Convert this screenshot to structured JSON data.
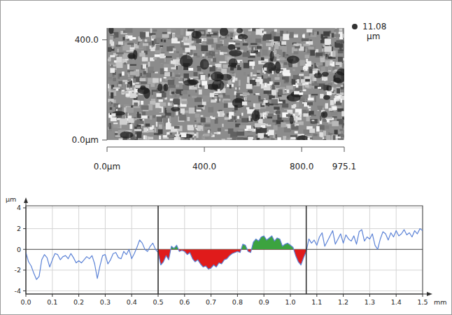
{
  "chart_data": [
    {
      "type": "surface",
      "xlim": [
        0,
        975.1
      ],
      "ylim": [
        0,
        447
      ],
      "xticks": [
        {
          "value": 0,
          "label": "0.0µm"
        },
        {
          "value": 400,
          "label": "400.0"
        },
        {
          "value": 800,
          "label": "800.0"
        },
        {
          "value": 975.1,
          "label": "975.1"
        }
      ],
      "yticks": [
        {
          "value": 0,
          "label": "0.0µm"
        },
        {
          "value": 400,
          "label": "400.0"
        }
      ],
      "z_max": 11.08,
      "z_unit": "µm"
    },
    {
      "type": "line",
      "x_label": "mm",
      "y_label": "µm",
      "color": "#5b82d6",
      "grid": true,
      "xlim": [
        0,
        1.5
      ],
      "ylim": [
        -4.3,
        4.2
      ],
      "xticks": [
        {
          "value": 0,
          "label": "0.0"
        },
        0.1,
        0.2,
        0.3,
        0.4,
        0.5,
        0.6,
        0.7,
        0.8,
        0.9,
        {
          "value": 1,
          "label": "1.0"
        },
        1.1,
        1.2,
        1.3,
        1.4,
        1.5
      ],
      "yticks": [
        -4,
        -2,
        0,
        2,
        4
      ],
      "cursors": [
        0.5,
        1.06
      ],
      "x": [
        0,
        0.01,
        0.02,
        0.03,
        0.04,
        0.05,
        0.06,
        0.07,
        0.08,
        0.09,
        0.1,
        0.11,
        0.12,
        0.13,
        0.14,
        0.15,
        0.16,
        0.17,
        0.18,
        0.19,
        0.2,
        0.21,
        0.22,
        0.23,
        0.24,
        0.25,
        0.26,
        0.27,
        0.28,
        0.29,
        0.3,
        0.31,
        0.32,
        0.33,
        0.34,
        0.35,
        0.36,
        0.37,
        0.38,
        0.39,
        0.4,
        0.41,
        0.42,
        0.43,
        0.44,
        0.45,
        0.46,
        0.47,
        0.48,
        0.49,
        0.5,
        0.51,
        0.52,
        0.53,
        0.54,
        0.55,
        0.56,
        0.57,
        0.58,
        0.59,
        0.6,
        0.61,
        0.62,
        0.63,
        0.64,
        0.65,
        0.66,
        0.67,
        0.68,
        0.69,
        0.7,
        0.71,
        0.72,
        0.73,
        0.74,
        0.75,
        0.76,
        0.77,
        0.78,
        0.79,
        0.8,
        0.81,
        0.82,
        0.83,
        0.84,
        0.85,
        0.86,
        0.87,
        0.88,
        0.89,
        0.9,
        0.91,
        0.92,
        0.93,
        0.94,
        0.95,
        0.96,
        0.97,
        0.98,
        0.99,
        1,
        1.01,
        1.02,
        1.03,
        1.04,
        1.05,
        1.06,
        1.07,
        1.08,
        1.09,
        1.1,
        1.11,
        1.12,
        1.13,
        1.14,
        1.15,
        1.16,
        1.17,
        1.18,
        1.19,
        1.2,
        1.21,
        1.22,
        1.23,
        1.24,
        1.25,
        1.26,
        1.27,
        1.28,
        1.29,
        1.3,
        1.31,
        1.32,
        1.33,
        1.34,
        1.35,
        1.36,
        1.37,
        1.38,
        1.39,
        1.4,
        1.41,
        1.42,
        1.43,
        1.44,
        1.45,
        1.46,
        1.47,
        1.48,
        1.49,
        1.5
      ],
      "values": [
        -0.3,
        -1.2,
        -1.6,
        -2.3,
        -2.9,
        -2.6,
        -1.0,
        -0.5,
        -0.8,
        -1.7,
        -1.0,
        -0.4,
        -0.5,
        -1.0,
        -0.7,
        -0.6,
        -0.9,
        -0.4,
        -0.8,
        -1.3,
        -1.1,
        -1.3,
        -1.0,
        -0.7,
        -0.9,
        -0.6,
        -1.4,
        -2.8,
        -1.6,
        -0.6,
        -0.5,
        -1.4,
        -1.0,
        -0.4,
        -0.3,
        -0.8,
        -0.9,
        -0.2,
        -0.5,
        0.0,
        -0.9,
        -0.4,
        0.2,
        0.9,
        0.6,
        0.0,
        -0.2,
        0.3,
        0.6,
        0.0,
        -0.3,
        -1.5,
        -1.2,
        -0.6,
        -1.0,
        0.3,
        0.1,
        0.4,
        -0.2,
        -0.1,
        -0.2,
        -0.5,
        -0.3,
        -0.9,
        -1.2,
        -1.0,
        -1.4,
        -1.7,
        -1.6,
        -1.9,
        -1.8,
        -1.5,
        -1.7,
        -1.3,
        -1.4,
        -1.0,
        -0.9,
        -0.6,
        -0.4,
        -0.3,
        -0.2,
        -0.3,
        0.5,
        0.4,
        -0.2,
        -0.3,
        0.7,
        1.0,
        0.8,
        1.2,
        1.3,
        0.9,
        1.1,
        1.3,
        0.8,
        1.1,
        1.0,
        0.3,
        0.5,
        0.6,
        0.4,
        0.2,
        -0.6,
        -1.2,
        -1.5,
        -0.8,
        -0.2,
        1.0,
        0.6,
        0.9,
        0.4,
        1.2,
        1.6,
        0.3,
        0.8,
        1.3,
        1.8,
        0.5,
        1.0,
        1.5,
        0.6,
        1.4,
        1.0,
        0.8,
        1.3,
        0.5,
        1.7,
        1.9,
        0.8,
        1.2,
        1.0,
        1.5,
        0.4,
        0.0,
        1.0,
        1.7,
        1.5,
        0.9,
        1.6,
        1.2,
        1.8,
        1.3,
        1.5,
        1.9,
        1.4,
        1.6,
        1.2,
        1.8,
        1.5,
        2.0,
        1.8
      ]
    }
  ]
}
